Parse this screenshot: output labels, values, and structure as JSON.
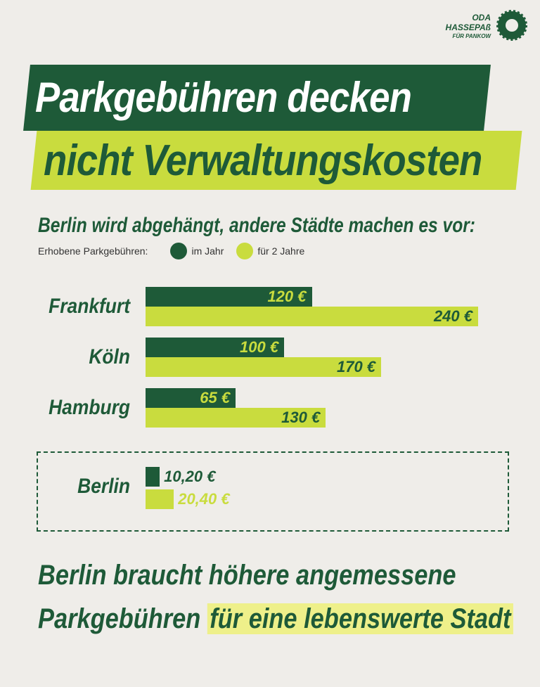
{
  "logo": {
    "line1": "ODA",
    "line2": "HASSEPAß",
    "line3": "FÜR PANKOW"
  },
  "title": {
    "line1": "Parkgebühren decken",
    "line2": "nicht Verwaltungskosten"
  },
  "subtitle": "Berlin wird abgehängt, andere Städte machen es vor:",
  "colors": {
    "dark": "#1e5a38",
    "lime": "#c9dc3e"
  },
  "chart_data": {
    "type": "bar",
    "orientation": "horizontal",
    "legend_label": "Erhobene Parkgebühren:",
    "categories": [
      "Frankfurt",
      "Köln",
      "Hamburg",
      "Berlin"
    ],
    "series": [
      {
        "name": "im Jahr",
        "values": [
          120,
          100,
          65,
          10.2
        ],
        "labels": [
          "120 €",
          "100 €",
          "65 €",
          "10,20 €"
        ]
      },
      {
        "name": "für 2 Jahre",
        "values": [
          240,
          170,
          130,
          20.4
        ],
        "labels": [
          "240 €",
          "170 €",
          "130 €",
          "20,40 €"
        ]
      }
    ],
    "unit": "€",
    "highlighted_category": "Berlin"
  },
  "footer": {
    "line1": "Berlin braucht höhere angemessene",
    "line2_a": "Parkgebühren ",
    "line2_b": "für eine lebenswerte Stadt"
  }
}
